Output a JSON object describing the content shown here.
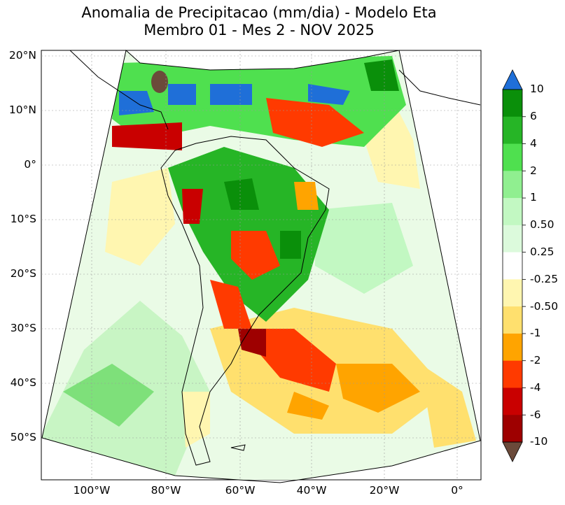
{
  "title": {
    "line1": "Anomalia de Precipitacao (mm/dia) - Modelo Eta",
    "line2": "Membro 01 - Mes 2 - NOV 2025"
  },
  "axes": {
    "lat_labels": [
      "20°N",
      "10°N",
      "0°",
      "10°S",
      "20°S",
      "30°S",
      "40°S",
      "50°S"
    ],
    "lon_labels": [
      "100°W",
      "80°W",
      "60°W",
      "40°W",
      "20°W",
      "0°"
    ]
  },
  "colorbar": {
    "labels": [
      "10",
      "6",
      "4",
      "2",
      "1",
      "0.50",
      "0.25",
      "-0.25",
      "-0.50",
      "-1",
      "-2",
      "-4",
      "-6",
      "-10"
    ],
    "colors": [
      "#1f6fd8",
      "#0a8f0a",
      "#26b526",
      "#4fe04f",
      "#90ef90",
      "#c2f8c2",
      "#dcfadc",
      "#ffffff",
      "#fff6b0",
      "#ffe06e",
      "#ffa400",
      "#ff3a00",
      "#c90000",
      "#9e0000",
      "#6b4a3a"
    ]
  },
  "map": {
    "ocean_color": "#ffffff",
    "frame_color": "#000000"
  }
}
